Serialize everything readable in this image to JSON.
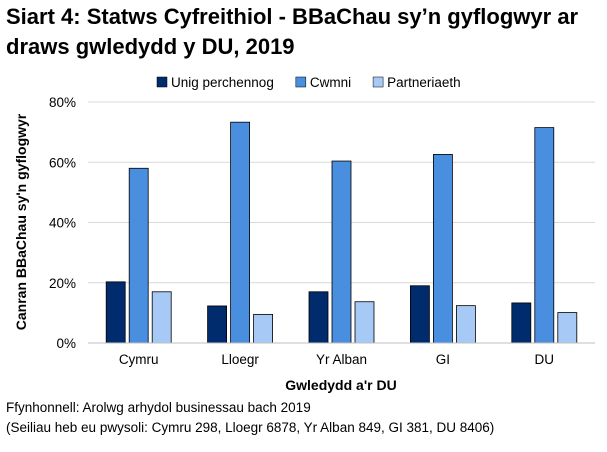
{
  "chart_data": {
    "type": "bar",
    "title": "Siart 4: Statws Cyfreithiol - BBaChau sy’n gyflogwyr ar draws gwledydd y DU, 2019",
    "xlabel": "Gwledydd a'r DU",
    "ylabel": "Canran BBaChau sy'n gyflogwyr",
    "categories": [
      "Cymru",
      "Lloegr",
      "Yr Alban",
      "GI",
      "DU"
    ],
    "series": [
      {
        "name": "Unig perchennog",
        "color": "#002c6e",
        "values": [
          20.3,
          12.3,
          17.0,
          19.0,
          13.3
        ]
      },
      {
        "name": "Cwmni",
        "color": "#4a8ee0",
        "values": [
          58.0,
          73.3,
          60.4,
          62.6,
          71.5
        ]
      },
      {
        "name": "Partneriaeth",
        "color": "#a6c9f5",
        "values": [
          17.0,
          9.5,
          13.7,
          12.4,
          10.1
        ]
      }
    ],
    "ylim": [
      0,
      80
    ],
    "yticks": [
      "0%",
      "20%",
      "40%",
      "60%",
      "80%"
    ],
    "ytick_values": [
      0,
      20,
      40,
      60,
      80
    ],
    "grid": true,
    "legend_position": "top"
  },
  "source": {
    "line1": "Ffynhonnell: Arolwg arhydol businessau bach 2019",
    "line2": "(Seiliau heb eu pwysoli: Cymru 298, Lloegr 6878, Yr Alban 849, GI 381, DU 8406)"
  }
}
